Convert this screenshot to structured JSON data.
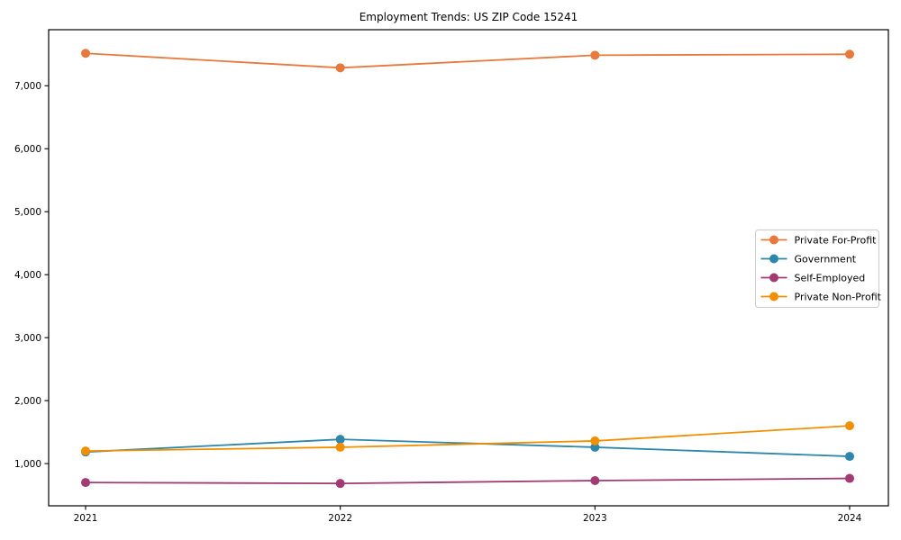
{
  "chart_data": {
    "type": "line",
    "title": "Employment Trends: US ZIP Code 15241",
    "xlabel": "",
    "ylabel": "",
    "categories": [
      "2021",
      "2022",
      "2023",
      "2024"
    ],
    "series": [
      {
        "name": "Private For-Profit",
        "color": "#E7793C",
        "values": [
          7515,
          7285,
          7485,
          7500
        ]
      },
      {
        "name": "Government",
        "color": "#2E86AB",
        "values": [
          1185,
          1385,
          1260,
          1115
        ]
      },
      {
        "name": "Self-Employed",
        "color": "#A23B72",
        "values": [
          700,
          685,
          730,
          765
        ]
      },
      {
        "name": "Private Non-Profit",
        "color": "#F18F01",
        "values": [
          1200,
          1260,
          1360,
          1600
        ]
      }
    ],
    "ylim": [
      330,
      7890
    ],
    "yticks": {
      "values": [
        1000,
        2000,
        3000,
        4000,
        5000,
        6000,
        7000
      ],
      "labels": [
        "1,000",
        "2,000",
        "3,000",
        "4,000",
        "5,000",
        "6,000",
        "7,000"
      ]
    },
    "grid": false,
    "legend_position": "right",
    "axis_color": "#000000",
    "legend_border_color": "#cccccc",
    "background": "#ffffff"
  }
}
